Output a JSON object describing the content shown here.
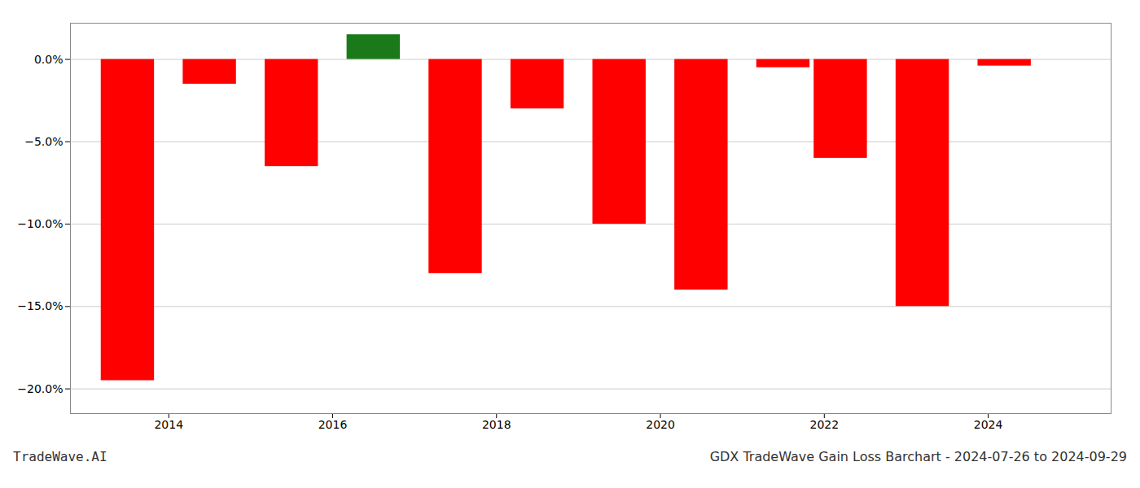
{
  "chart_data": {
    "type": "bar",
    "title": "GDX TradeWave Gain Loss Barchart - 2024-07-26 to 2024-09-29",
    "annotations": [
      {
        "text": "TradeWave.AI"
      }
    ],
    "x": [
      2013.5,
      2014.5,
      2015.5,
      2016.5,
      2017.5,
      2018.5,
      2019.5,
      2020.5,
      2021.5,
      2022.2,
      2023.2,
      2024.2
    ],
    "values": [
      -19.5,
      -1.5,
      -6.5,
      1.5,
      -13.0,
      -3.0,
      -10.0,
      -14.0,
      -0.5,
      -6.0,
      -15.0,
      -0.4
    ],
    "colors": [
      "#ff0000",
      "#ff0000",
      "#ff0000",
      "#1a7a1a",
      "#ff0000",
      "#ff0000",
      "#ff0000",
      "#ff0000",
      "#ff0000",
      "#ff0000",
      "#ff0000",
      "#ff0000"
    ],
    "xlim": [
      2012.8,
      2025.5
    ],
    "xticks": [
      2014,
      2016,
      2018,
      2020,
      2022,
      2024
    ],
    "ylim": [
      -21.5,
      2.2
    ],
    "yticks": [
      {
        "value": 0.0,
        "label": "0.0%"
      },
      {
        "value": -5.0,
        "label": "−5.0%"
      },
      {
        "value": -10.0,
        "label": "−10.0%"
      },
      {
        "value": -15.0,
        "label": "−15.0%"
      },
      {
        "value": -20.0,
        "label": "−20.0%"
      }
    ],
    "grid": true
  }
}
